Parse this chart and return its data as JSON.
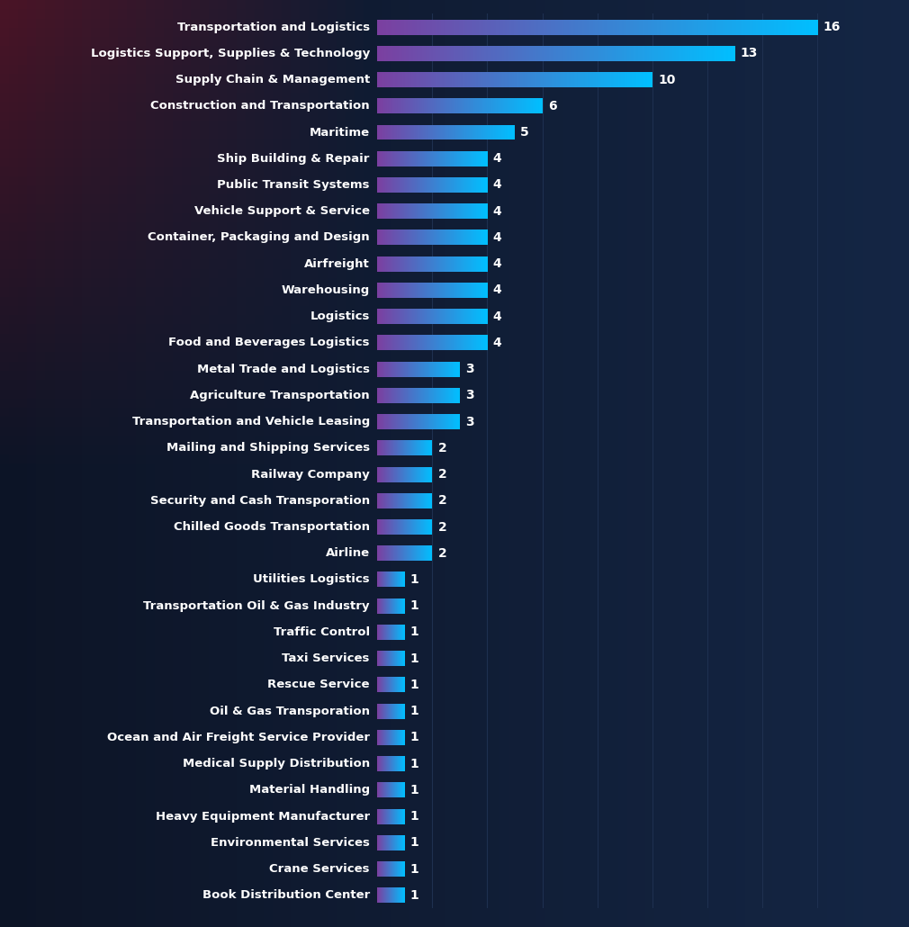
{
  "categories": [
    "Transportation and Logistics",
    "Logistics Support, Supplies & Technology",
    "Supply Chain & Management",
    "Construction and Transportation",
    "Maritime",
    "Ship Building & Repair",
    "Public Transit Systems",
    "Vehicle Support & Service",
    "Container, Packaging and Design",
    "Airfreight",
    "Warehousing",
    "Logistics",
    "Food and Beverages Logistics",
    "Metal Trade and Logistics",
    "Agriculture Transportation",
    "Transportation and Vehicle Leasing",
    "Mailing and Shipping Services",
    "Railway Company",
    "Security and Cash Transporation",
    "Chilled Goods Transportation",
    "Airline",
    "Utilities Logistics",
    "Transportation Oil & Gas Industry",
    "Traffic Control",
    "Taxi Services",
    "Rescue Service",
    "Oil & Gas Transporation",
    "Ocean and Air Freight Service Provider",
    "Medical Supply Distribution",
    "Material Handling",
    "Heavy Equipment Manufacturer",
    "Environmental Services",
    "Crane Services",
    "Book Distribution Center"
  ],
  "values": [
    16,
    13,
    10,
    6,
    5,
    4,
    4,
    4,
    4,
    4,
    4,
    4,
    4,
    3,
    3,
    3,
    2,
    2,
    2,
    2,
    2,
    1,
    1,
    1,
    1,
    1,
    1,
    1,
    1,
    1,
    1,
    1,
    1,
    1
  ],
  "bg_color_dark": "#0a1628",
  "bg_color_mid": "#0d1e35",
  "bar_color_left": "#7b3fa0",
  "bar_color_right": "#00bfff",
  "text_color": "#ffffff",
  "grid_color": "#1e3050",
  "value_fontsize": 10,
  "label_fontsize": 9.5,
  "xlim": [
    0,
    18
  ],
  "bar_height": 0.58
}
